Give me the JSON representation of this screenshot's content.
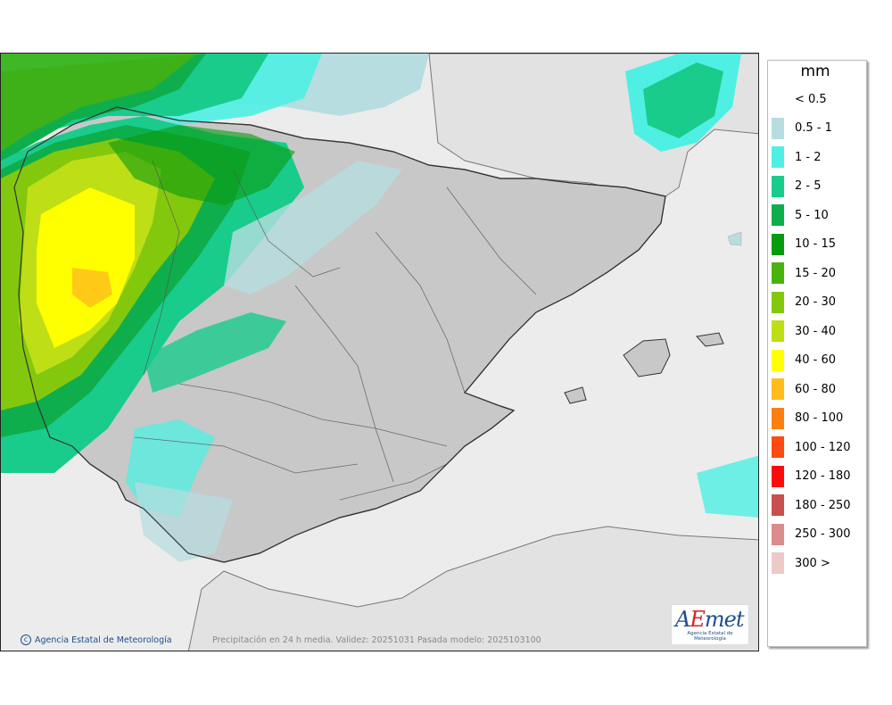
{
  "legend": {
    "title": "mm",
    "items": [
      {
        "label": "< 0.5",
        "color": "#ffffff"
      },
      {
        "label": "0.5 - 1",
        "color": "#b7dde0"
      },
      {
        "label": "1 - 2",
        "color": "#4ff0e3"
      },
      {
        "label": "2 - 5",
        "color": "#19cc8c"
      },
      {
        "label": "5 - 10",
        "color": "#0fae4c"
      },
      {
        "label": "10 - 15",
        "color": "#0a9a0f"
      },
      {
        "label": "15 - 20",
        "color": "#4ab20d"
      },
      {
        "label": "20 - 30",
        "color": "#84c80e"
      },
      {
        "label": "30 - 40",
        "color": "#bede16"
      },
      {
        "label": "40 - 60",
        "color": "#ffff00"
      },
      {
        "label": "60 - 80",
        "color": "#ffbd1d"
      },
      {
        "label": "80 - 100",
        "color": "#ff7f0e"
      },
      {
        "label": "100 - 120",
        "color": "#ff4a10"
      },
      {
        "label": "120 - 180",
        "color": "#ff0a0a"
      },
      {
        "label": "180 - 250",
        "color": "#c9504e"
      },
      {
        "label": "250 - 300",
        "color": "#dc8c8c"
      },
      {
        "label": "300 >",
        "color": "#efc8c8"
      }
    ]
  },
  "footer": {
    "copyright": "Agencia Estatal de Meteorología",
    "caption": "Precipitación en 24 h media. Validez: 20251031 Pasada modelo: 2025103100"
  },
  "logo": {
    "title_a": "A",
    "title_b": "E",
    "title_c": "met",
    "subtitle": "Agencia Estatal de Meteorología"
  },
  "map": {
    "region": "Iberian Peninsula and Balearic Islands",
    "variable": "precipitation 24h mean"
  }
}
